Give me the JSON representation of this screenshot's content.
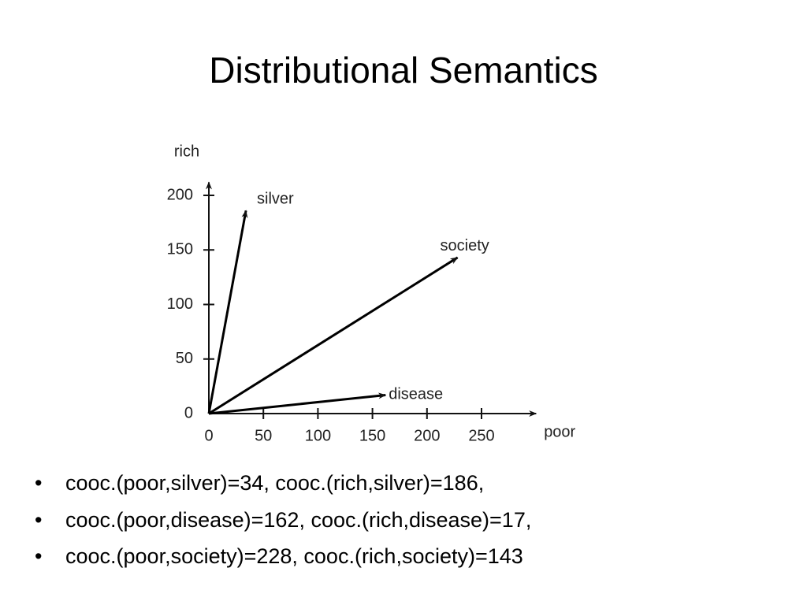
{
  "title": "Distributional Semantics",
  "chart_data": {
    "type": "vector",
    "xlabel": "poor",
    "ylabel": "rich",
    "color": "#000000",
    "xlim": [
      0,
      300
    ],
    "ylim": [
      0,
      212
    ],
    "xticks": [
      0,
      50,
      100,
      150,
      200,
      250
    ],
    "yticks": [
      0,
      50,
      100,
      150,
      200
    ],
    "series": [
      {
        "name": "silver",
        "x": 34,
        "y": 186
      },
      {
        "name": "society",
        "x": 228,
        "y": 143
      },
      {
        "name": "disease",
        "x": 162,
        "y": 17
      }
    ]
  },
  "bullets": [
    "cooc.(poor,silver)=34, cooc.(rich,silver)=186,",
    "cooc.(poor,disease)=162, cooc.(rich,disease)=17,",
    "cooc.(poor,society)=228, cooc.(rich,society)=143"
  ]
}
